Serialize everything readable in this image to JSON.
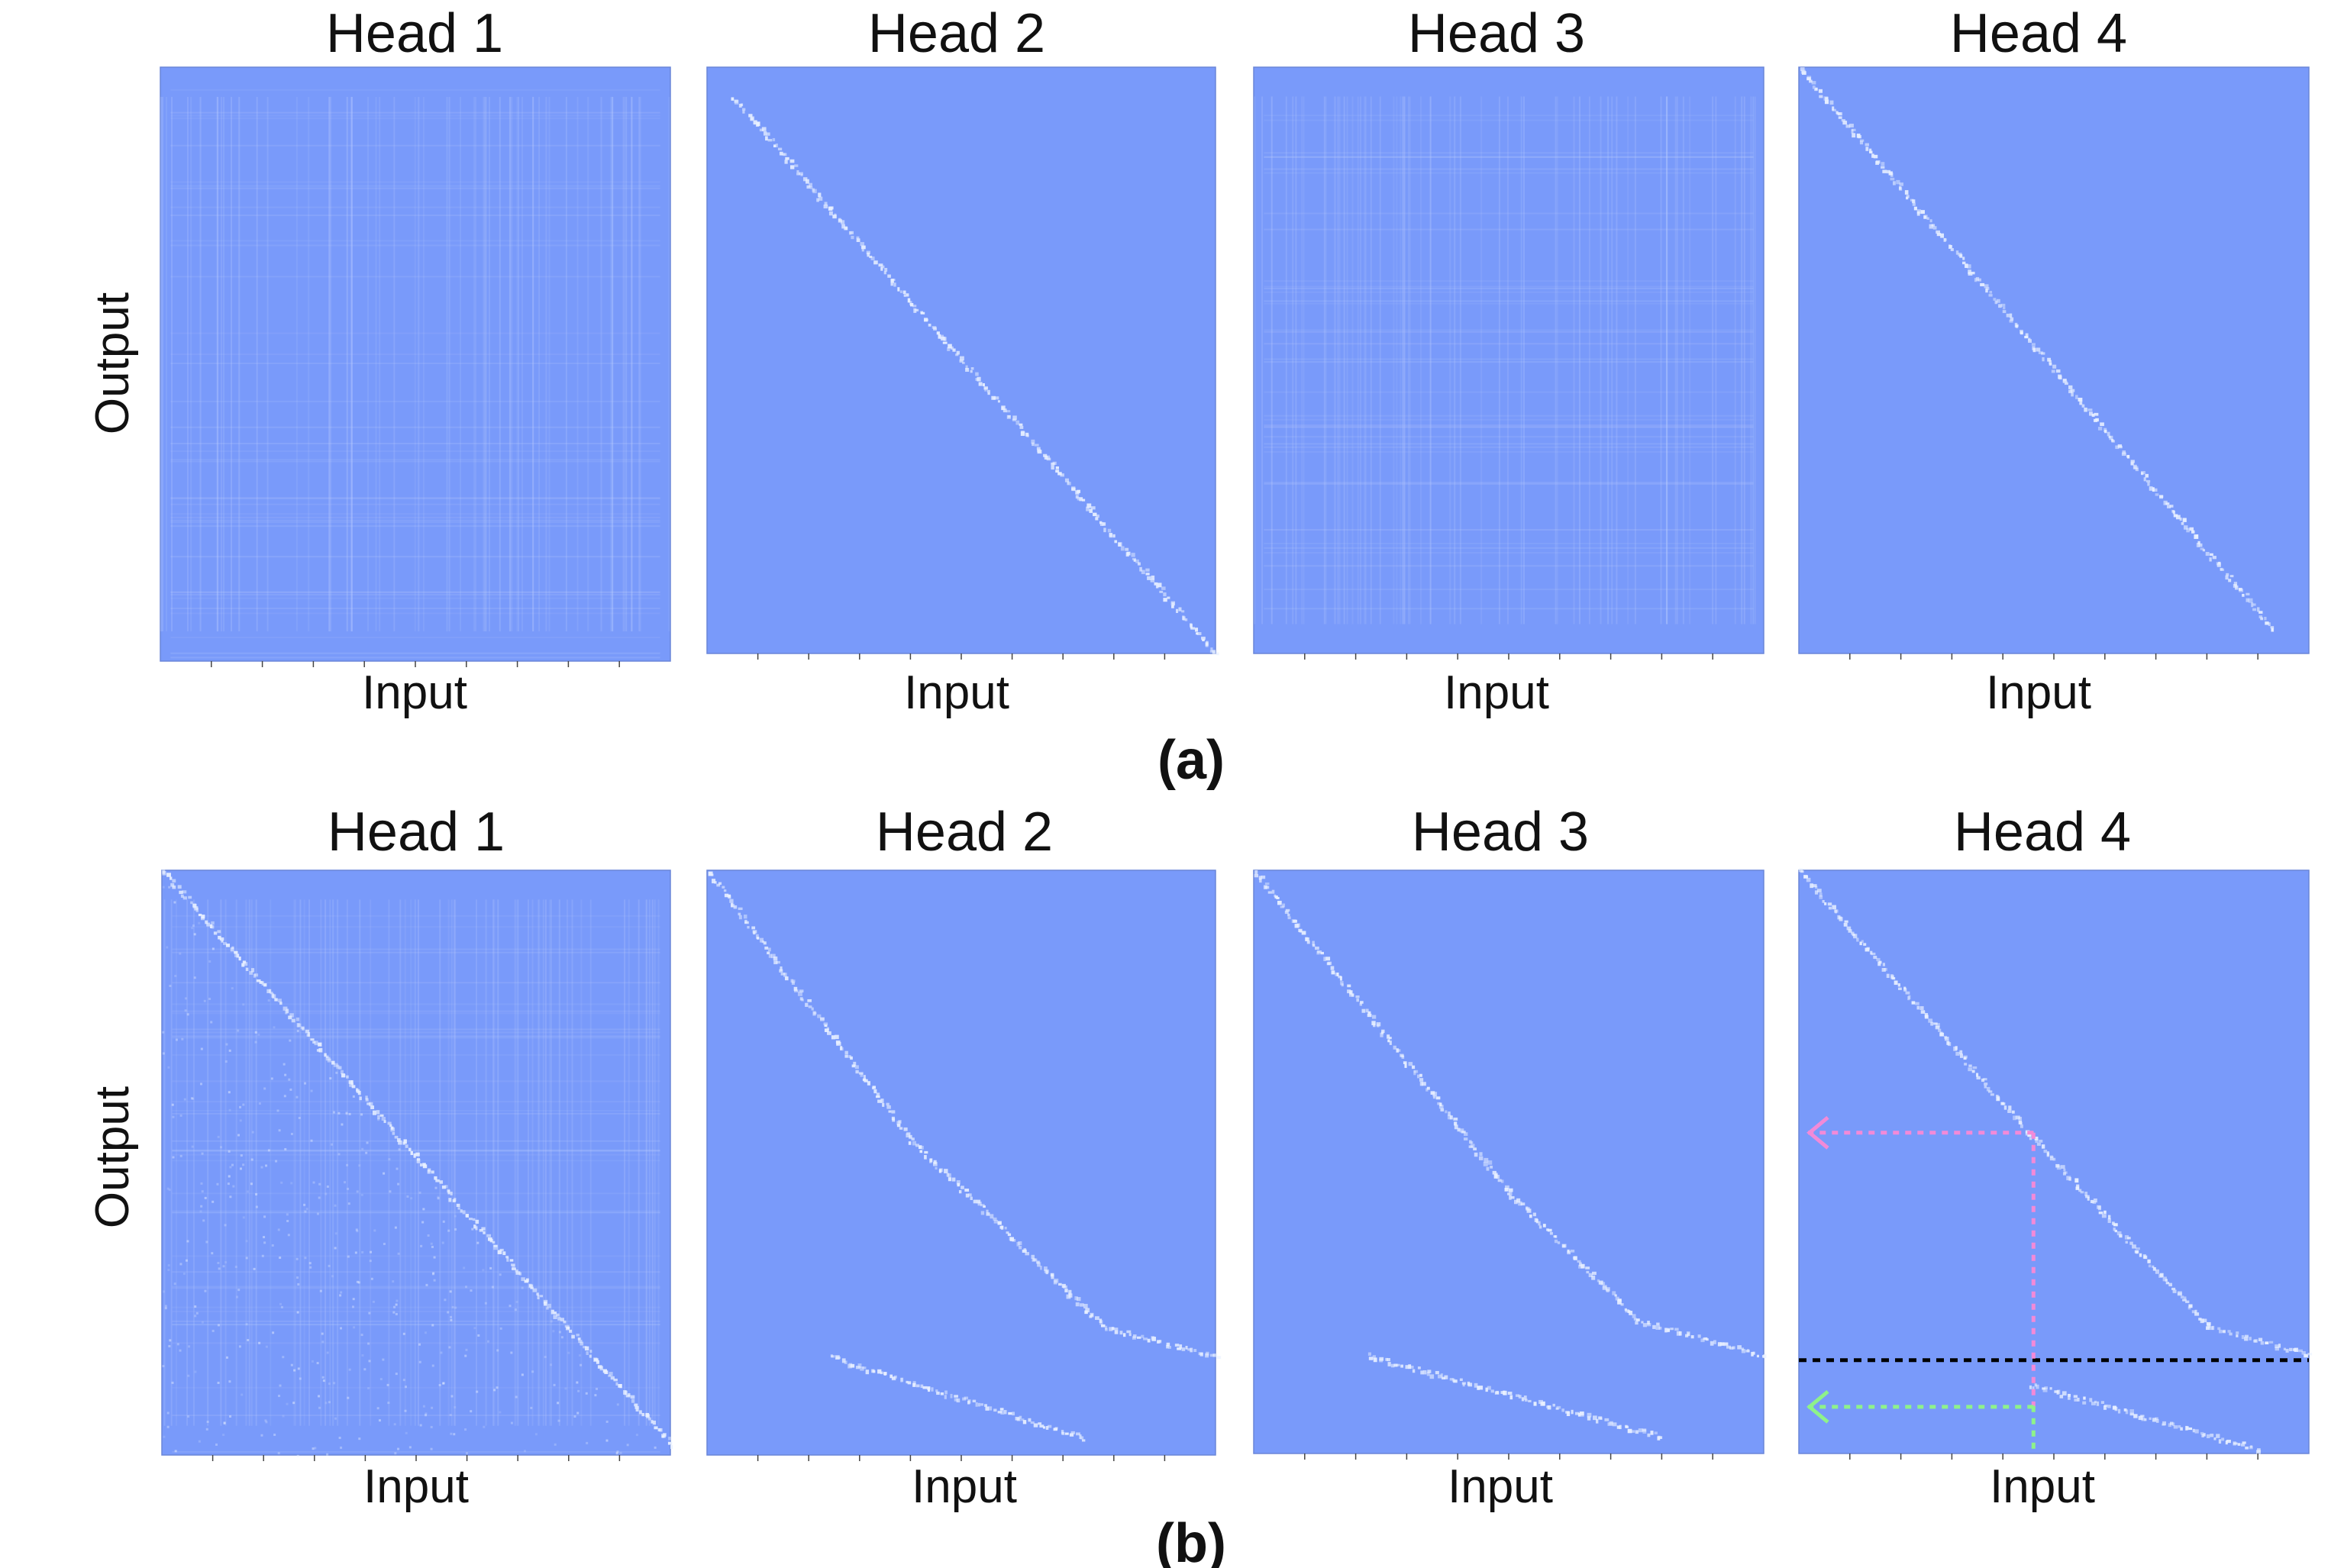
{
  "figure": {
    "panels": [
      {
        "caption": "(a)",
        "ylabel": "Output",
        "heads": [
          {
            "title": "Head 1",
            "xlabel": "Input"
          },
          {
            "title": "Head 2",
            "xlabel": "Input"
          },
          {
            "title": "Head 3",
            "xlabel": "Input"
          },
          {
            "title": "Head 4",
            "xlabel": "Input"
          }
        ]
      },
      {
        "caption": "(b)",
        "ylabel": "Output",
        "heads": [
          {
            "title": "Head 1",
            "xlabel": "Input"
          },
          {
            "title": "Head 2",
            "xlabel": "Input"
          },
          {
            "title": "Head 3",
            "xlabel": "Input"
          },
          {
            "title": "Head 4",
            "xlabel": "Input"
          }
        ]
      }
    ]
  },
  "colors": {
    "background": "#799afa",
    "highlight": "#eaf1ff",
    "text": "#111111",
    "pink_arrow": "#f28ad8",
    "green_arrow": "#8ef28a",
    "black_line": "#000000"
  },
  "chart_data": [
    {
      "type": "heatmap",
      "title": "Head 1",
      "xlabel": "Input",
      "ylabel": "Output",
      "pattern": "diffuse, no clear diagonal",
      "diagonals": []
    },
    {
      "type": "heatmap",
      "title": "Head 2",
      "xlabel": "Input",
      "pattern": "strong diagonal",
      "diagonals": [
        {
          "x": [
            0.05,
            1.0
          ],
          "y": [
            0.05,
            1.0
          ]
        }
      ]
    },
    {
      "type": "heatmap",
      "title": "Head 3",
      "xlabel": "Input",
      "pattern": "diffuse, no clear diagonal",
      "diagonals": []
    },
    {
      "type": "heatmap",
      "title": "Head 4",
      "xlabel": "Input",
      "pattern": "strong diagonal",
      "diagonals": [
        {
          "x": [
            0.0,
            0.93
          ],
          "y": [
            0.0,
            0.96
          ]
        }
      ]
    },
    {
      "type": "heatmap",
      "title": "Head 1",
      "xlabel": "Input",
      "ylabel": "Output",
      "pattern": "lower-triangular diffuse with diagonal",
      "diagonals": [
        {
          "x": [
            0.0,
            1.0
          ],
          "y": [
            0.0,
            0.98
          ]
        }
      ]
    },
    {
      "type": "heatmap",
      "title": "Head 2",
      "xlabel": "Input",
      "pattern": "two diagonal segments",
      "diagonals": [
        {
          "x": [
            0.0,
            0.4,
            0.78,
            1.0
          ],
          "y": [
            0.0,
            0.46,
            0.78,
            0.83
          ]
        },
        {
          "x": [
            0.24,
            0.74
          ],
          "y": [
            0.83,
            0.97
          ]
        }
      ]
    },
    {
      "type": "heatmap",
      "title": "Head 3",
      "xlabel": "Input",
      "pattern": "two diagonal segments",
      "diagonals": [
        {
          "x": [
            0.0,
            0.5,
            0.75,
            1.0
          ],
          "y": [
            0.0,
            0.55,
            0.77,
            0.83
          ]
        },
        {
          "x": [
            0.22,
            0.8
          ],
          "y": [
            0.83,
            0.97
          ]
        }
      ]
    },
    {
      "type": "heatmap",
      "title": "Head 4",
      "xlabel": "Input",
      "pattern": "two diagonal segments with annotation",
      "diagonals": [
        {
          "x": [
            0.0,
            0.45,
            0.8,
            1.0
          ],
          "y": [
            0.0,
            0.45,
            0.78,
            0.83
          ]
        },
        {
          "x": [
            0.45,
            0.9
          ],
          "y": [
            0.88,
            0.99
          ]
        }
      ],
      "annotations": {
        "black_dotted_hline_y": 0.84,
        "pink_arrow": {
          "from_x": 0.46,
          "y": 0.45
        },
        "green_arrow": {
          "from_x": 0.46,
          "y": 0.92
        },
        "vertical_dotted_x": 0.46
      }
    }
  ]
}
